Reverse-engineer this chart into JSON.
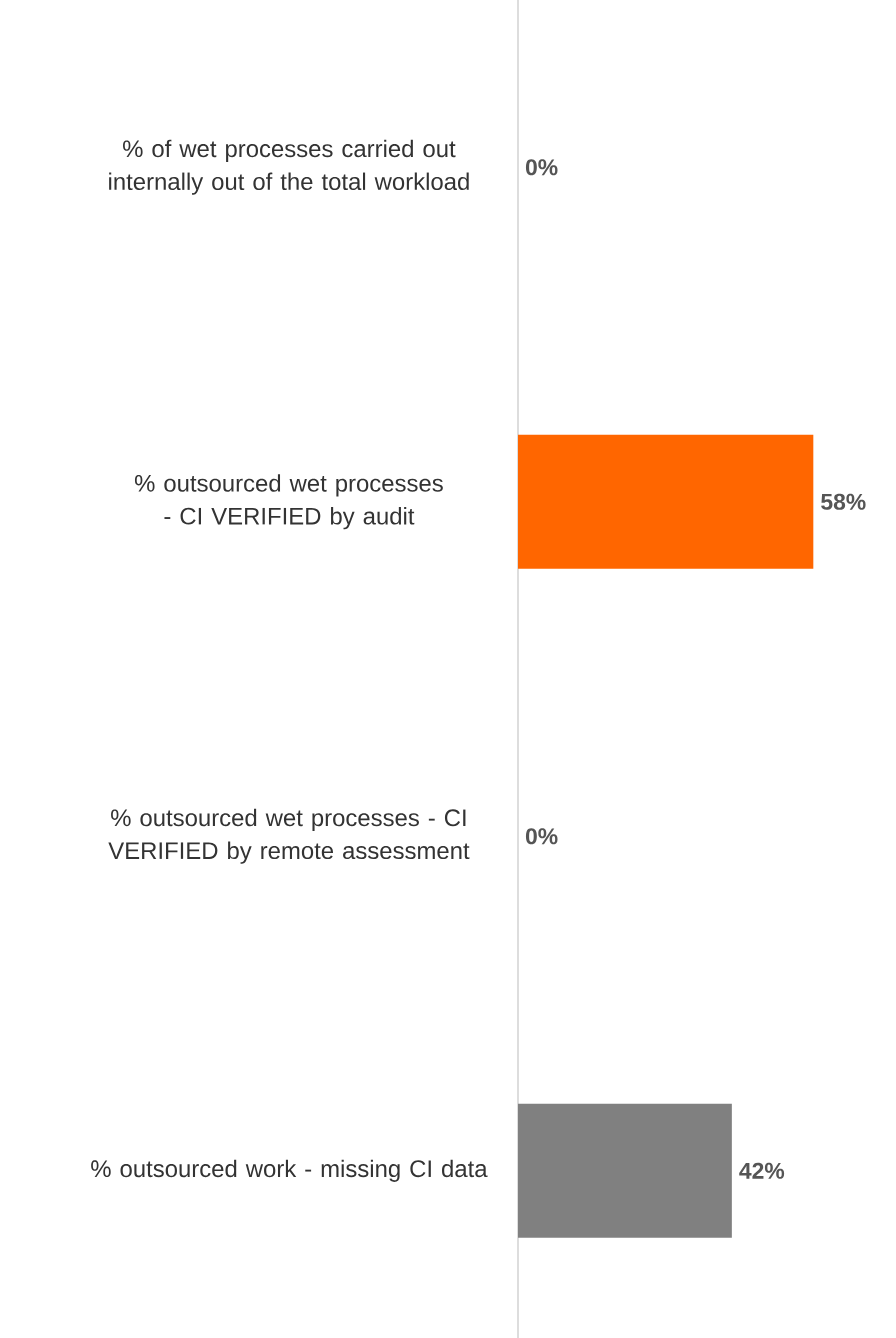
{
  "chart_data": {
    "type": "bar",
    "orientation": "horizontal",
    "categories": [
      "% of wet processes carried out internally out of the total workload",
      "% outsourced wet processes - CI VERIFIED by audit",
      "% outsourced wet processes - CI VERIFIED by remote assessment",
      "% outsourced work - missing CI data"
    ],
    "values": [
      0,
      58,
      0,
      42
    ],
    "colors": [
      "#808080",
      "#ff6600",
      "#ff6600",
      "#808080"
    ],
    "value_labels": [
      "0%",
      "58%",
      "0%",
      "42%"
    ],
    "tick_labels": "y"
  }
}
